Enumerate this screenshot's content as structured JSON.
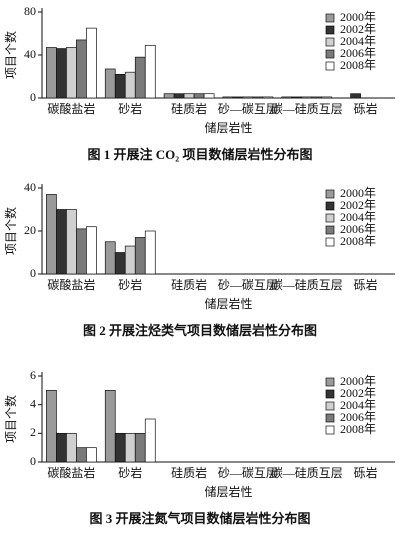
{
  "chart_data": [
    {
      "type": "bar",
      "title": "图 1  开展注 CO₂ 项目数储层岩性分布图",
      "x_label": "储层岩性",
      "y_label": "项目个数",
      "categories": [
        "碳酸盐岩",
        "砂岩",
        "硅质岩",
        "砂—碳互层",
        "碳—硅质互层",
        "砾岩"
      ],
      "series": [
        {
          "name": "2000年",
          "color": "#9a9a9a",
          "values": [
            47,
            27,
            4,
            1,
            1,
            0
          ]
        },
        {
          "name": "2002年",
          "color": "#333333",
          "values": [
            46,
            22,
            4,
            1,
            1,
            4
          ]
        },
        {
          "name": "2004年",
          "color": "#d0d0d0",
          "values": [
            47,
            24,
            4,
            1,
            1,
            0
          ]
        },
        {
          "name": "2006年",
          "color": "#7a7a7a",
          "values": [
            54,
            38,
            4,
            1,
            1,
            0
          ]
        },
        {
          "name": "2008年",
          "color": "#ffffff",
          "values": [
            65,
            49,
            4,
            1,
            1,
            0
          ]
        }
      ],
      "ylim": [
        0,
        80
      ],
      "yticks": [
        0,
        40,
        80
      ],
      "legend": "right"
    },
    {
      "type": "bar",
      "title": "图 2  开展注烃类气项目数储层岩性分布图",
      "x_label": "储层岩性",
      "y_label": "项目个数",
      "categories": [
        "碳酸盐岩",
        "砂岩",
        "硅质岩",
        "砂—碳互层",
        "碳—硅质互层",
        "砾岩"
      ],
      "series": [
        {
          "name": "2000年",
          "color": "#9a9a9a",
          "values": [
            37,
            15,
            0,
            0,
            0,
            0
          ]
        },
        {
          "name": "2002年",
          "color": "#333333",
          "values": [
            30,
            10,
            0,
            0,
            0,
            0
          ]
        },
        {
          "name": "2004年",
          "color": "#d0d0d0",
          "values": [
            30,
            13,
            0,
            0,
            0,
            0
          ]
        },
        {
          "name": "2006年",
          "color": "#7a7a7a",
          "values": [
            21,
            17,
            0,
            0,
            0,
            0
          ]
        },
        {
          "name": "2008年",
          "color": "#ffffff",
          "values": [
            22,
            20,
            0,
            0,
            0,
            0
          ]
        }
      ],
      "ylim": [
        0,
        40
      ],
      "yticks": [
        0,
        20,
        40
      ],
      "legend": "right"
    },
    {
      "type": "bar",
      "title": "图 3  开展注氮气项目数储层岩性分布图",
      "x_label": "储层岩性",
      "y_label": "项目个数",
      "categories": [
        "碳酸盐岩",
        "砂岩",
        "硅质岩",
        "砂—碳互层",
        "碳—硅质互层",
        "砾岩"
      ],
      "series": [
        {
          "name": "2000年",
          "color": "#9a9a9a",
          "values": [
            5,
            5,
            0,
            0,
            0,
            0
          ]
        },
        {
          "name": "2002年",
          "color": "#333333",
          "values": [
            2,
            2,
            0,
            0,
            0,
            0
          ]
        },
        {
          "name": "2004年",
          "color": "#d0d0d0",
          "values": [
            2,
            2,
            0,
            0,
            0,
            0
          ]
        },
        {
          "name": "2006年",
          "color": "#7a7a7a",
          "values": [
            1,
            2,
            0,
            0,
            0,
            0
          ]
        },
        {
          "name": "2008年",
          "color": "#ffffff",
          "values": [
            1,
            3,
            0,
            0,
            0,
            0
          ]
        }
      ],
      "ylim": [
        0,
        6
      ],
      "yticks": [
        0,
        2,
        4,
        6
      ],
      "legend": "right"
    }
  ]
}
